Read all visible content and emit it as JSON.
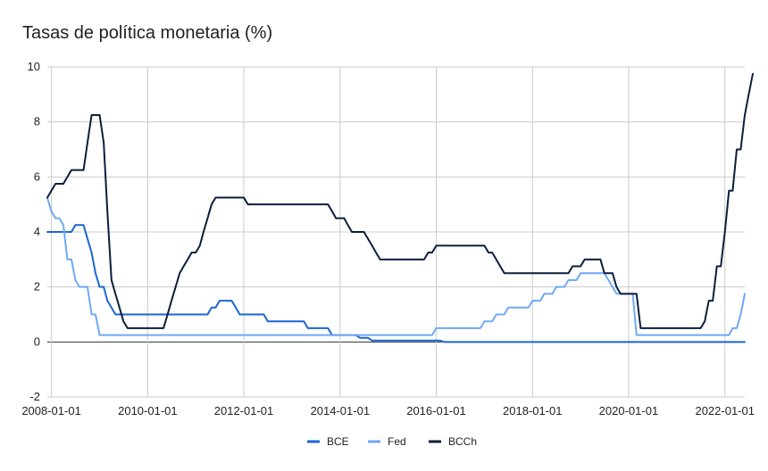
{
  "chart_data": {
    "type": "line",
    "title": "Tasas de política monetaria (%)",
    "xlabel": "",
    "ylabel": "",
    "x_range": [
      "2007-12-01",
      "2022-06-01"
    ],
    "ylim": [
      -2,
      10
    ],
    "y_ticks": [
      -2,
      0,
      2,
      4,
      6,
      8,
      10
    ],
    "x_ticks": [
      "2008-01-01",
      "2010-01-01",
      "2012-01-01",
      "2014-01-01",
      "2016-01-01",
      "2018-01-01",
      "2020-01-01",
      "2022-01-01"
    ],
    "grid": true,
    "legend_position": "bottom",
    "series": [
      {
        "name": "BCE",
        "color": "#1a66d2",
        "points": [
          [
            "2007-12-01",
            4.0
          ],
          [
            "2008-06-01",
            4.0
          ],
          [
            "2008-07-01",
            4.25
          ],
          [
            "2008-09-01",
            4.25
          ],
          [
            "2008-10-01",
            3.75
          ],
          [
            "2008-11-01",
            3.25
          ],
          [
            "2008-12-01",
            2.5
          ],
          [
            "2009-01-01",
            2.0
          ],
          [
            "2009-02-01",
            2.0
          ],
          [
            "2009-03-01",
            1.5
          ],
          [
            "2009-04-01",
            1.25
          ],
          [
            "2009-05-01",
            1.0
          ],
          [
            "2011-04-01",
            1.0
          ],
          [
            "2011-05-01",
            1.25
          ],
          [
            "2011-06-01",
            1.25
          ],
          [
            "2011-07-01",
            1.5
          ],
          [
            "2011-10-01",
            1.5
          ],
          [
            "2011-11-01",
            1.25
          ],
          [
            "2011-12-01",
            1.0
          ],
          [
            "2012-06-01",
            1.0
          ],
          [
            "2012-07-01",
            0.75
          ],
          [
            "2013-04-01",
            0.75
          ],
          [
            "2013-05-01",
            0.5
          ],
          [
            "2013-10-01",
            0.5
          ],
          [
            "2013-11-01",
            0.25
          ],
          [
            "2014-05-01",
            0.25
          ],
          [
            "2014-06-01",
            0.15
          ],
          [
            "2014-08-01",
            0.15
          ],
          [
            "2014-09-01",
            0.05
          ],
          [
            "2016-02-01",
            0.05
          ],
          [
            "2016-03-01",
            0.0
          ],
          [
            "2022-06-01",
            0.0
          ]
        ]
      },
      {
        "name": "Fed",
        "color": "#6fa8f5",
        "points": [
          [
            "2007-12-01",
            5.25
          ],
          [
            "2008-01-01",
            4.75
          ],
          [
            "2008-02-01",
            4.5
          ],
          [
            "2008-03-01",
            4.5
          ],
          [
            "2008-04-01",
            4.25
          ],
          [
            "2008-05-01",
            3.0
          ],
          [
            "2008-06-01",
            3.0
          ],
          [
            "2008-07-01",
            2.25
          ],
          [
            "2008-08-01",
            2.0
          ],
          [
            "2008-09-01",
            2.0
          ],
          [
            "2008-10-01",
            2.0
          ],
          [
            "2008-11-01",
            1.0
          ],
          [
            "2008-12-01",
            1.0
          ],
          [
            "2009-01-01",
            0.25
          ],
          [
            "2015-12-01",
            0.25
          ],
          [
            "2016-01-01",
            0.5
          ],
          [
            "2016-12-01",
            0.5
          ],
          [
            "2017-01-01",
            0.75
          ],
          [
            "2017-03-01",
            0.75
          ],
          [
            "2017-04-01",
            1.0
          ],
          [
            "2017-06-01",
            1.0
          ],
          [
            "2017-07-01",
            1.25
          ],
          [
            "2017-12-01",
            1.25
          ],
          [
            "2018-01-01",
            1.5
          ],
          [
            "2018-03-01",
            1.5
          ],
          [
            "2018-04-01",
            1.75
          ],
          [
            "2018-06-01",
            1.75
          ],
          [
            "2018-07-01",
            2.0
          ],
          [
            "2018-09-01",
            2.0
          ],
          [
            "2018-10-01",
            2.25
          ],
          [
            "2018-12-01",
            2.25
          ],
          [
            "2019-01-01",
            2.5
          ],
          [
            "2019-07-01",
            2.5
          ],
          [
            "2019-08-01",
            2.25
          ],
          [
            "2019-09-01",
            2.0
          ],
          [
            "2019-10-01",
            1.75
          ],
          [
            "2020-02-01",
            1.75
          ],
          [
            "2020-03-01",
            0.25
          ],
          [
            "2022-02-01",
            0.25
          ],
          [
            "2022-03-01",
            0.5
          ],
          [
            "2022-04-01",
            0.5
          ],
          [
            "2022-05-01",
            1.0
          ],
          [
            "2022-06-01",
            1.75
          ]
        ]
      },
      {
        "name": "BCCh",
        "color": "#0b1e3b",
        "points": [
          [
            "2007-12-01",
            5.25
          ],
          [
            "2008-01-01",
            5.5
          ],
          [
            "2008-02-01",
            5.75
          ],
          [
            "2008-04-01",
            5.75
          ],
          [
            "2008-05-01",
            6.0
          ],
          [
            "2008-06-01",
            6.25
          ],
          [
            "2008-07-01",
            6.25
          ],
          [
            "2008-09-01",
            6.25
          ],
          [
            "2008-10-01",
            7.25
          ],
          [
            "2008-11-01",
            8.25
          ],
          [
            "2009-01-01",
            8.25
          ],
          [
            "2009-02-01",
            7.25
          ],
          [
            "2009-03-01",
            4.75
          ],
          [
            "2009-04-01",
            2.25
          ],
          [
            "2009-05-01",
            1.75
          ],
          [
            "2009-06-01",
            1.25
          ],
          [
            "2009-07-01",
            0.75
          ],
          [
            "2009-08-01",
            0.5
          ],
          [
            "2010-05-01",
            0.5
          ],
          [
            "2010-06-01",
            1.0
          ],
          [
            "2010-07-01",
            1.5
          ],
          [
            "2010-08-01",
            2.0
          ],
          [
            "2010-09-01",
            2.5
          ],
          [
            "2010-10-01",
            2.75
          ],
          [
            "2010-11-01",
            3.0
          ],
          [
            "2010-12-01",
            3.25
          ],
          [
            "2011-01-01",
            3.25
          ],
          [
            "2011-02-01",
            3.5
          ],
          [
            "2011-03-01",
            4.0
          ],
          [
            "2011-04-01",
            4.5
          ],
          [
            "2011-05-01",
            5.0
          ],
          [
            "2011-06-01",
            5.25
          ],
          [
            "2012-01-01",
            5.25
          ],
          [
            "2012-02-01",
            5.0
          ],
          [
            "2013-10-01",
            5.0
          ],
          [
            "2013-11-01",
            4.75
          ],
          [
            "2013-12-01",
            4.5
          ],
          [
            "2014-02-01",
            4.5
          ],
          [
            "2014-03-01",
            4.25
          ],
          [
            "2014-04-01",
            4.0
          ],
          [
            "2014-07-01",
            4.0
          ],
          [
            "2014-08-01",
            3.75
          ],
          [
            "2014-09-01",
            3.5
          ],
          [
            "2014-10-01",
            3.25
          ],
          [
            "2014-11-01",
            3.0
          ],
          [
            "2015-10-01",
            3.0
          ],
          [
            "2015-11-01",
            3.25
          ],
          [
            "2015-12-01",
            3.25
          ],
          [
            "2016-01-01",
            3.5
          ],
          [
            "2017-01-01",
            3.5
          ],
          [
            "2017-02-01",
            3.25
          ],
          [
            "2017-03-01",
            3.25
          ],
          [
            "2017-04-01",
            3.0
          ],
          [
            "2017-05-01",
            2.75
          ],
          [
            "2017-06-01",
            2.5
          ],
          [
            "2018-10-01",
            2.5
          ],
          [
            "2018-11-01",
            2.75
          ],
          [
            "2019-01-01",
            2.75
          ],
          [
            "2019-02-01",
            3.0
          ],
          [
            "2019-06-01",
            3.0
          ],
          [
            "2019-07-01",
            2.5
          ],
          [
            "2019-09-01",
            2.5
          ],
          [
            "2019-10-01",
            2.0
          ],
          [
            "2019-11-01",
            1.75
          ],
          [
            "2020-03-01",
            1.75
          ],
          [
            "2020-04-01",
            0.5
          ],
          [
            "2021-07-01",
            0.5
          ],
          [
            "2021-08-01",
            0.75
          ],
          [
            "2021-09-01",
            1.5
          ],
          [
            "2021-10-01",
            1.5
          ],
          [
            "2021-11-01",
            2.75
          ],
          [
            "2021-12-01",
            2.75
          ],
          [
            "2022-01-01",
            4.0
          ],
          [
            "2022-02-01",
            5.5
          ],
          [
            "2022-03-01",
            5.5
          ],
          [
            "2022-04-01",
            7.0
          ],
          [
            "2022-05-01",
            7.0
          ],
          [
            "2022-06-01",
            8.25
          ],
          [
            "2022-07-01",
            9.0
          ],
          [
            "2022-08-01",
            9.75
          ]
        ]
      }
    ]
  }
}
